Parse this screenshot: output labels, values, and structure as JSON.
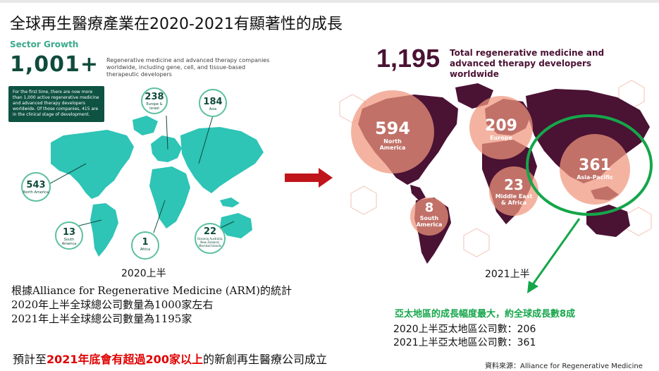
{
  "slide": {
    "title": "全球再生醫療產業在2020-2021有顯著性的成長"
  },
  "left_panel": {
    "sector_label": "Sector Growth",
    "big_number": "1,001+",
    "description": "Regenerative medicine and advanced therapy companies worldwide, including gene, cell, and tissue-based therapeutic developers",
    "note": "For the first time, there are now more than 1,000 active regenerative medicine and advanced therapy developers worldwide. Of those companies, 415 are in the clinical stage of development.",
    "regions": [
      {
        "value": "238",
        "name": "Europe & Israel"
      },
      {
        "value": "184",
        "name": "Asia"
      },
      {
        "value": "543",
        "name": "North America"
      },
      {
        "value": "13",
        "name": "South America"
      },
      {
        "value": "1",
        "name": "Africa"
      },
      {
        "value": "22",
        "name": "Oceania Australia, New Zealand, Marshall Islands"
      }
    ],
    "caption": "2020上半"
  },
  "right_panel": {
    "big_number": "1,195",
    "description": "Total regenerative medicine and advanced therapy developers worldwide",
    "regions": [
      {
        "value": "594",
        "name": "North America"
      },
      {
        "value": "209",
        "name": "Europe"
      },
      {
        "value": "361",
        "name": "Asia-Pacific"
      },
      {
        "value": "23",
        "name": "Middle East & Africa"
      },
      {
        "value": "8",
        "name": "South America"
      }
    ],
    "caption": "2021上半"
  },
  "notes": {
    "line1": "根據Alliance for Regenerative Medicine (ARM)的統計",
    "line2": "2020年上半全球總公司數量為1000家左右",
    "line3": "2021年上半全球總公司數量為1195家",
    "forecast_pre": "預計至",
    "forecast_hl": "2021年底會有超過200家以上",
    "forecast_post": "的新創再生醫療公司成立"
  },
  "apac": {
    "title": "亞太地區的成長幅度最大，約全球成長數8成",
    "line1": "2020上半亞太地區公司數：206",
    "line2": "2021上半亞太地區公司數：361"
  },
  "source": "資料來源：Alliance for Regenerative Medicine",
  "colors": {
    "teal_map": "#2ec4b6",
    "dark_green": "#0e5242",
    "plum_map": "#4a1233",
    "salmon": "#f0967d",
    "arrow_red": "#c0151b",
    "highlight_green": "#15a64a",
    "highlight_red": "#e00000"
  }
}
